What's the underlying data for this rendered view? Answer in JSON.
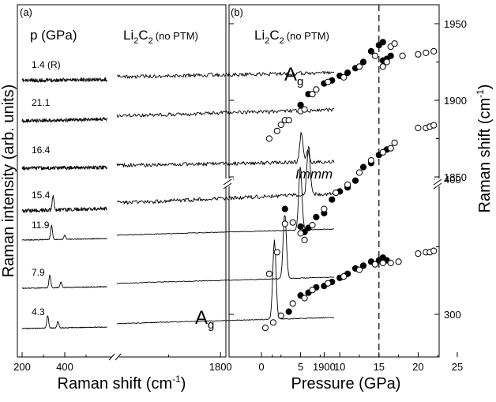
{
  "chart_data": [
    {
      "type": "line",
      "panel_label": "(a)",
      "legend_header": "p (GPa)",
      "sample_label_main": "Li",
      "sample_label_sub1": "2",
      "sample_label_c": "C",
      "sample_label_sub2": "2",
      "sample_label_note": "(no PTM)",
      "xlabel": "Raman shift (cm",
      "xlabel_sup": "-1",
      "xlabel_close": ")",
      "ylabel": "Raman intensity (arb. units)",
      "x_ticks": [
        "200",
        "400",
        "1800",
        "1900"
      ],
      "x_break": [
        600,
        1700
      ],
      "peak_label_main": "A",
      "peak_label_sub": "g",
      "series": [
        {
          "name": "1.4 (R)",
          "pressure": 1.4,
          "released": true,
          "peaks": []
        },
        {
          "name": "21.1",
          "pressure": 21.1,
          "peaks": []
        },
        {
          "name": "16.4",
          "pressure": 16.4,
          "peaks": [
            {
              "x": 1878,
              "h": 38
            },
            {
              "x": 1884,
              "h": 14
            }
          ]
        },
        {
          "name": "15.4",
          "pressure": 15.4,
          "peaks": [
            {
              "x": 345,
              "h": 18
            },
            {
              "x": 1885,
              "h": 62
            }
          ]
        },
        {
          "name": "11.9",
          "pressure": 11.9,
          "peaks": [
            {
              "x": 338,
              "h": 18
            },
            {
              "x": 400,
              "h": 5
            },
            {
              "x": 1877,
              "h": 80
            }
          ]
        },
        {
          "name": "7.9",
          "pressure": 7.9,
          "peaks": [
            {
              "x": 330,
              "h": 16
            },
            {
              "x": 382,
              "h": 7
            },
            {
              "x": 1862,
              "h": 82
            }
          ]
        },
        {
          "name": "4.3",
          "pressure": 4.3,
          "peaks": [
            {
              "x": 320,
              "h": 16
            },
            {
              "x": 368,
              "h": 8
            },
            {
              "x": 1852,
              "h": 100
            }
          ]
        }
      ]
    },
    {
      "type": "scatter",
      "panel_label": "(b)",
      "sample_label_main": "Li",
      "sample_label_sub1": "2",
      "sample_label_c": "C",
      "sample_label_sub2": "2",
      "sample_label_note": "(no PTM)",
      "phase_label": "Immm",
      "mode_label_main": "A",
      "mode_label_sub": "g",
      "xlabel": "Pressure (GPa)",
      "ylabel": "Raman shift (cm",
      "ylabel_sup": "-1",
      "ylabel_close": ")",
      "xlim": [
        -1.5,
        25
      ],
      "x_ticks": [
        "0",
        "5",
        "10",
        "15",
        "20",
        "25"
      ],
      "y_ticks_upper": [
        "1850",
        "1900",
        "1950"
      ],
      "y_ticks_lower": [
        "300",
        "400"
      ],
      "y_break": [
        450,
        1845
      ],
      "vline_x": 15,
      "series": [
        {
          "name": "Ag upper, filled",
          "filled": true,
          "points": [
            [
              5,
              1897
            ],
            [
              6,
              1904
            ],
            [
              8,
              1911
            ],
            [
              9,
              1913
            ],
            [
              10,
              1916
            ],
            [
              11,
              1918
            ],
            [
              12,
              1921
            ],
            [
              13,
              1925
            ],
            [
              14,
              1932
            ],
            [
              15,
              1936
            ],
            [
              15.5,
              1938
            ],
            [
              15.5,
              1926
            ],
            [
              16,
              1927
            ],
            [
              16.5,
              1929
            ]
          ]
        },
        {
          "name": "Ag upper, open",
          "filled": false,
          "points": [
            [
              1,
              1875
            ],
            [
              2,
              1880
            ],
            [
              2.5,
              1884
            ],
            [
              3,
              1887
            ],
            [
              3.5,
              1887
            ],
            [
              5,
              1893
            ],
            [
              5.5,
              1894
            ],
            [
              6.5,
              1904
            ],
            [
              7,
              1907
            ],
            [
              8.5,
              1912
            ],
            [
              10.5,
              1915
            ],
            [
              12.5,
              1922
            ],
            [
              14.5,
              1929
            ],
            [
              15.5,
              1922
            ],
            [
              16,
              1925
            ],
            [
              16.5,
              1935
            ],
            [
              17,
              1937
            ],
            [
              18,
              1929
            ],
            [
              20,
              1930
            ],
            [
              21,
              1931
            ],
            [
              22,
              1932
            ]
          ]
        },
        {
          "name": "mode ~420, filled",
          "filled": true,
          "points": [
            [
              3,
              378
            ],
            [
              5,
              365
            ],
            [
              5.5,
              361
            ],
            [
              6,
              364
            ],
            [
              7,
              372
            ],
            [
              8,
              375
            ],
            [
              9,
              385
            ],
            [
              10,
              391
            ],
            [
              11,
              394
            ],
            [
              12,
              399
            ],
            [
              13,
              409
            ],
            [
              14,
              412
            ],
            [
              15,
              418
            ],
            [
              16,
              422
            ]
          ]
        },
        {
          "name": "mode ~420, open",
          "filled": false,
          "points": [
            [
              1,
              330
            ],
            [
              2,
              346
            ],
            [
              3,
              367
            ],
            [
              4,
              368
            ],
            [
              5,
              360
            ],
            [
              5.5,
              355
            ],
            [
              6.5,
              366
            ],
            [
              8,
              378
            ],
            [
              9.5,
              390
            ],
            [
              11,
              396
            ],
            [
              12.5,
              405
            ],
            [
              14,
              414
            ],
            [
              15.5,
              420
            ],
            [
              16.5,
              423
            ],
            [
              17,
              427
            ],
            [
              20,
              438
            ],
            [
              21,
              438
            ],
            [
              21.5,
              439
            ],
            [
              22,
              440
            ]
          ]
        },
        {
          "name": "mode ~330, filled",
          "filled": true,
          "points": [
            [
              3.5,
              302
            ],
            [
              5,
              314
            ],
            [
              6,
              316
            ],
            [
              7,
              320
            ],
            [
              8,
              321
            ],
            [
              9,
              324
            ],
            [
              10,
              327
            ],
            [
              11,
              330
            ],
            [
              12,
              334
            ],
            [
              13,
              336
            ],
            [
              14,
              339
            ],
            [
              15,
              340
            ],
            [
              15.5,
              342
            ],
            [
              16,
              340
            ]
          ]
        },
        {
          "name": "mode ~330, open",
          "filled": false,
          "points": [
            [
              0.5,
              290
            ],
            [
              1.5,
              294
            ],
            [
              2.5,
              299
            ],
            [
              4,
              308
            ],
            [
              5.5,
              312
            ],
            [
              6.5,
              318
            ],
            [
              8.5,
              323
            ],
            [
              10.5,
              328
            ],
            [
              12.5,
              333
            ],
            [
              14.5,
              337
            ],
            [
              15.5,
              338
            ],
            [
              16.5,
              338
            ],
            [
              17.5,
              339
            ],
            [
              20,
              345
            ],
            [
              21,
              346
            ],
            [
              21.5,
              346
            ],
            [
              22,
              347
            ]
          ]
        }
      ]
    }
  ]
}
